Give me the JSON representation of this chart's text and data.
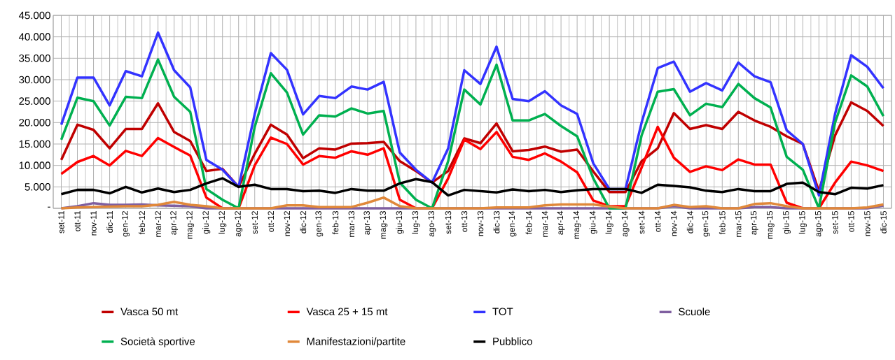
{
  "chart_data": {
    "type": "line",
    "categories": [
      "set-11",
      "ott-11",
      "nov-11",
      "dic-11",
      "gen-12",
      "feb-12",
      "mar-12",
      "apr-12",
      "mag-12",
      "giu-12",
      "lug-12",
      "ago-12",
      "set-12",
      "ott-12",
      "nov-12",
      "dic-12",
      "gen-13",
      "feb-13",
      "mar-13",
      "apr-13",
      "mag-13",
      "giu-13",
      "lug-13",
      "ago-13",
      "set-13",
      "ott-13",
      "nov-13",
      "dic-13",
      "gen-14",
      "feb-14",
      "mar-14",
      "apr-14",
      "mag-14",
      "giu-14",
      "lug-14",
      "ago-14",
      "set-14",
      "ott-14",
      "nov-14",
      "dic-14",
      "gen-15",
      "feb-15",
      "mar-15",
      "apr-15",
      "mag-15",
      "giu-15",
      "lug-15",
      "ago-15",
      "set-15",
      "ott-15",
      "nov-15",
      "dic-15"
    ],
    "series": [
      {
        "name": "Vasca 50 mt",
        "color": "#c00000",
        "values": [
          11300,
          19500,
          18300,
          14000,
          18500,
          18500,
          24500,
          17800,
          15700,
          8700,
          9200,
          5000,
          12700,
          19500,
          17200,
          11700,
          14000,
          13700,
          15100,
          15200,
          15500,
          11000,
          8700,
          6000,
          8700,
          16300,
          15200,
          19800,
          13300,
          13600,
          14400,
          13200,
          13700,
          8600,
          3800,
          3800,
          11000,
          14000,
          22200,
          18500,
          19400,
          18500,
          22500,
          20500,
          19000,
          16800,
          15000,
          4000,
          17000,
          24700,
          22700,
          19200
        ]
      },
      {
        "name": "Vasca 25 + 15 mt",
        "color": "#ff0000",
        "values": [
          8000,
          10800,
          12200,
          10000,
          13400,
          12200,
          16400,
          14300,
          12300,
          2500,
          0,
          0,
          10000,
          16500,
          15000,
          10200,
          12200,
          11800,
          13300,
          12500,
          14000,
          2000,
          0,
          0,
          7000,
          16000,
          13800,
          17800,
          12000,
          11300,
          12800,
          10900,
          8400,
          1800,
          500,
          500,
          9500,
          19000,
          11800,
          8500,
          9800,
          8900,
          11400,
          10200,
          10200,
          1300,
          0,
          0,
          6000,
          10900,
          10000,
          8700
        ]
      },
      {
        "name": "TOT",
        "color": "#3333ff",
        "values": [
          19500,
          30500,
          30500,
          24000,
          32000,
          30800,
          41000,
          32200,
          28200,
          11300,
          9000,
          5000,
          22000,
          36200,
          32300,
          21900,
          26200,
          25700,
          28400,
          27700,
          29500,
          13000,
          9000,
          6000,
          14000,
          32200,
          29000,
          37700,
          25500,
          25000,
          27300,
          24000,
          22000,
          10500,
          4500,
          4500,
          20000,
          32700,
          34200,
          27200,
          29200,
          27500,
          34000,
          30800,
          29400,
          18200,
          15000,
          3000,
          22000,
          35700,
          33000,
          28000
        ]
      },
      {
        "name": "Scuole",
        "color": "#7f5fa0",
        "values": [
          0,
          500,
          1200,
          800,
          800,
          900,
          700,
          600,
          500,
          0,
          0,
          0,
          0,
          0,
          0,
          0,
          0,
          0,
          0,
          0,
          0,
          0,
          0,
          0,
          0,
          0,
          0,
          0,
          0,
          0,
          0,
          0,
          0,
          0,
          0,
          0,
          0,
          0,
          500,
          0,
          0,
          0,
          0,
          300,
          300,
          0,
          0,
          0,
          0,
          0,
          0,
          600
        ]
      },
      {
        "name": "Società sportive",
        "color": "#00b050",
        "values": [
          16000,
          25800,
          25000,
          19300,
          26000,
          25700,
          34700,
          26000,
          22500,
          4500,
          2000,
          0,
          19000,
          31500,
          27000,
          17200,
          21700,
          21400,
          23300,
          22100,
          22700,
          6000,
          2000,
          0,
          11000,
          27700,
          24200,
          33500,
          20500,
          20500,
          22000,
          19200,
          16800,
          7000,
          0,
          0,
          17000,
          27200,
          27800,
          21700,
          24400,
          23600,
          29000,
          25700,
          23500,
          12000,
          9000,
          0,
          20000,
          31000,
          28400,
          21500
        ]
      },
      {
        "name": "Manifestazioni/partite",
        "color": "#e0883a",
        "values": [
          0,
          200,
          300,
          400,
          500,
          500,
          800,
          1500,
          800,
          500,
          0,
          0,
          0,
          0,
          700,
          700,
          300,
          300,
          300,
          1300,
          2500,
          500,
          0,
          0,
          0,
          0,
          0,
          200,
          200,
          200,
          700,
          900,
          900,
          900,
          400,
          0,
          0,
          0,
          800,
          300,
          500,
          0,
          0,
          1000,
          1200,
          500,
          0,
          0,
          0,
          0,
          200,
          900
        ]
      },
      {
        "name": "Pubblico",
        "color": "#000000",
        "values": [
          3300,
          4300,
          4300,
          3500,
          5000,
          3700,
          4600,
          3800,
          4300,
          5800,
          7000,
          5000,
          5500,
          4500,
          4500,
          4000,
          4100,
          3600,
          4500,
          4100,
          4100,
          5800,
          6800,
          6100,
          3000,
          4300,
          4000,
          3700,
          4400,
          4000,
          4300,
          3800,
          4200,
          4500,
          4500,
          4500,
          3600,
          5500,
          5200,
          4900,
          4100,
          3800,
          4500,
          4000,
          4000,
          5700,
          6000,
          3800,
          3300,
          4800,
          4600,
          5400
        ]
      }
    ],
    "ylim": [
      0,
      45000
    ],
    "yticks": [
      {
        "value": 0,
        "label": "-"
      },
      {
        "value": 5000,
        "label": "5.000"
      },
      {
        "value": 10000,
        "label": "10.000"
      },
      {
        "value": 15000,
        "label": "15.000"
      },
      {
        "value": 20000,
        "label": "20.000"
      },
      {
        "value": 25000,
        "label": "25.000"
      },
      {
        "value": 30000,
        "label": "30.000"
      },
      {
        "value": 35000,
        "label": "35.000"
      },
      {
        "value": 40000,
        "label": "40.000"
      },
      {
        "value": 45000,
        "label": "45.000"
      }
    ],
    "grid": true,
    "legend": "bottom",
    "marker": "none",
    "line_style": "solid"
  }
}
